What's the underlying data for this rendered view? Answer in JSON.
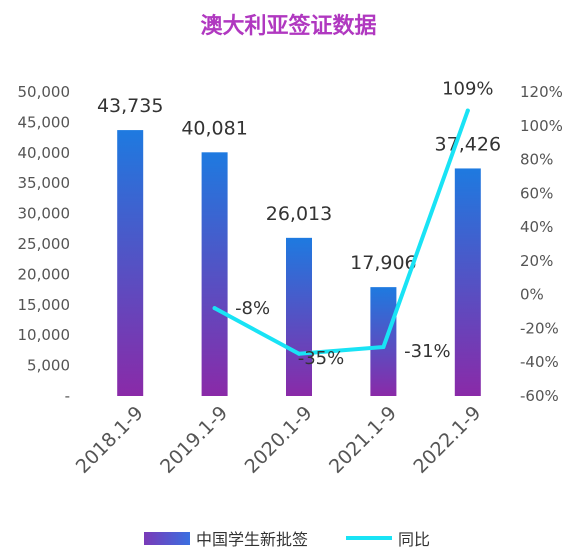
{
  "title": "澳大利亚签证数据",
  "chart_data": {
    "type": "bar+line",
    "title": "澳大利亚签证数据",
    "categories": [
      "2018.1-9",
      "2019.1-9",
      "2020.1-9",
      "2021.1-9",
      "2022.1-9"
    ],
    "series": [
      {
        "name": "中国学生新批签",
        "type": "bar",
        "axis": "left",
        "values": [
          43735,
          40081,
          26013,
          17906,
          37426
        ],
        "labels": [
          "43,735",
          "40,081",
          "26,013",
          "17,906",
          "37,426"
        ],
        "color_top": "#1e7ae0",
        "color_bottom": "#8a2aa8"
      },
      {
        "name": "同比",
        "type": "line",
        "axis": "right",
        "values": [
          null,
          -8,
          -35,
          -31,
          109
        ],
        "labels": [
          "",
          "-8%",
          "-35%",
          "-31%",
          "109%"
        ],
        "color": "#19e3f5"
      }
    ],
    "y_left": {
      "min": 0,
      "max": 50000,
      "ticks": [
        "-",
        "5,000",
        "10,000",
        "15,000",
        "20,000",
        "25,000",
        "30,000",
        "35,000",
        "40,000",
        "45,000",
        "50,000"
      ]
    },
    "y_right": {
      "min": -60,
      "max": 120,
      "ticks": [
        "-60%",
        "-40%",
        "-20%",
        "0%",
        "20%",
        "40%",
        "60%",
        "80%",
        "100%",
        "120%"
      ]
    },
    "grid": false,
    "legend_position": "bottom"
  }
}
